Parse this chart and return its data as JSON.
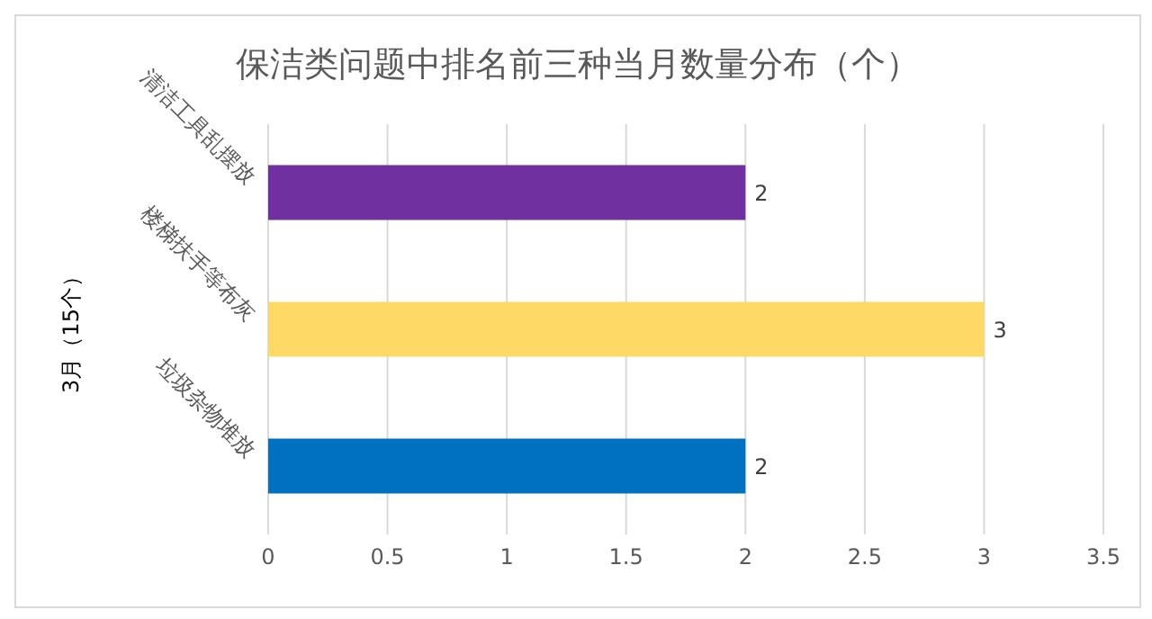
{
  "chart_data": {
    "type": "bar",
    "orientation": "horizontal",
    "title": "保洁类问题中排名前三种当月数量分布（个）",
    "ylabel": "3月（15个）",
    "categories": [
      "清洁工具乱摆放",
      "楼梯扶手等布灰",
      "垃圾杂物堆放"
    ],
    "values": [
      2,
      3,
      2
    ],
    "colors": [
      "#7030a0",
      "#ffd966",
      "#0070c0"
    ],
    "xlim": [
      0,
      3.5
    ],
    "xticks": [
      0,
      0.5,
      1,
      1.5,
      2,
      2.5,
      3,
      3.5
    ],
    "grid": "x",
    "data_labels": true
  }
}
